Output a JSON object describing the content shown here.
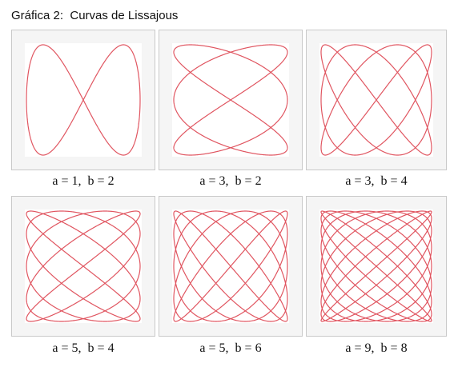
{
  "title": "Gráfica 2:  Curvas de Lissajous",
  "colors": {
    "curve": "#e05560",
    "panel_background": "#f5f5f5",
    "plot_background": "#ffffff",
    "panel_border": "#c9c9c9"
  },
  "curves": [
    {
      "a": 1,
      "b": 2,
      "label": "a = 1,  b = 2"
    },
    {
      "a": 3,
      "b": 2,
      "label": "a = 3,  b = 2"
    },
    {
      "a": 3,
      "b": 4,
      "label": "a = 3,  b = 4"
    },
    {
      "a": 5,
      "b": 4,
      "label": "a = 5,  b = 4"
    },
    {
      "a": 5,
      "b": 6,
      "label": "a = 5,  b = 6"
    },
    {
      "a": 9,
      "b": 8,
      "label": "a = 9,  b = 8"
    }
  ]
}
